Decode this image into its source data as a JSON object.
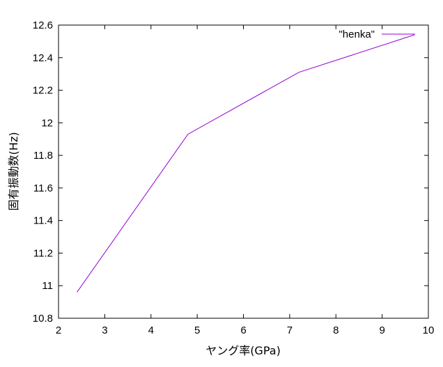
{
  "chart_data": {
    "type": "line",
    "title": "",
    "xlabel": "ヤング率(GPa)",
    "ylabel": "固有振動数(Hz)",
    "xlim": [
      2,
      10
    ],
    "ylim": [
      10.8,
      12.6
    ],
    "xticks": [
      2,
      3,
      4,
      5,
      6,
      7,
      8,
      9,
      10
    ],
    "yticks": [
      10.8,
      11,
      11.2,
      11.4,
      11.6,
      11.8,
      12,
      12.2,
      12.4,
      12.6
    ],
    "xtick_labels": [
      "2",
      "3",
      "4",
      "5",
      "6",
      "7",
      "8",
      "9",
      "10"
    ],
    "ytick_labels": [
      "10.8",
      "11",
      "11.2",
      "11.4",
      "11.6",
      "11.8",
      "12",
      "12.2",
      "12.4",
      "12.6"
    ],
    "grid": false,
    "legend_position": "top-right",
    "series": [
      {
        "name": "\"henka\"",
        "color": "#9400d3",
        "x": [
          2.4,
          4.8,
          7.2,
          9.7
        ],
        "y": [
          10.96,
          11.93,
          12.31,
          12.54
        ]
      }
    ]
  }
}
